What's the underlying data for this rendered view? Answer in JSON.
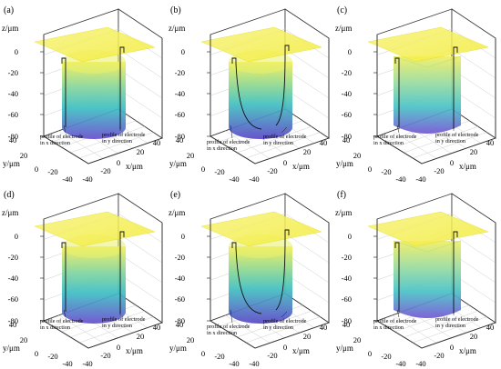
{
  "colors": {
    "surface_top": "#f6f04c",
    "surface_bottom": "#6a4fd0",
    "frame": "#333333",
    "grid": "#cfcfcf"
  },
  "panels": [
    {
      "label": "(a)",
      "shape": "cylinder",
      "profile": "flat"
    },
    {
      "label": "(b)",
      "shape": "cylinder",
      "profile": "curved"
    },
    {
      "label": "(c)",
      "shape": "box",
      "profile": "flat"
    },
    {
      "label": "(d)",
      "shape": "cylinder",
      "profile": "flat"
    },
    {
      "label": "(e)",
      "shape": "cylinder",
      "profile": "curved"
    },
    {
      "label": "(f)",
      "shape": "box",
      "profile": "flat"
    }
  ],
  "axes": {
    "z_label": "z/μm",
    "y_label": "y/μm",
    "x_label": "x/μm",
    "z_ticks": [
      "0",
      "-20",
      "-40",
      "-60",
      "-80"
    ],
    "y_ticks": [
      "40",
      "20",
      "0",
      "-20",
      "-40"
    ],
    "x_ticks": [
      "-40",
      "-20",
      "0",
      "20",
      "40"
    ]
  },
  "annotations": {
    "x_profile": [
      "profile of electrode",
      "in x direction"
    ],
    "y_profile": [
      "profile of electrode",
      "in y direction"
    ]
  }
}
